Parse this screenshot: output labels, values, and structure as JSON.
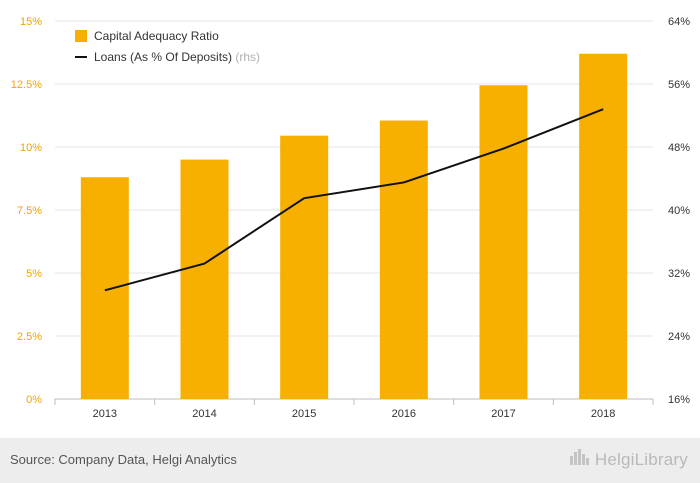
{
  "chart_data": {
    "type": "bar",
    "categories": [
      "2013",
      "2014",
      "2015",
      "2016",
      "2017",
      "2018"
    ],
    "series": [
      {
        "name": "Capital Adequacy Ratio",
        "type": "bar",
        "axis": "left",
        "color": "#f7b000",
        "values": [
          8.8,
          9.5,
          10.45,
          11.05,
          12.45,
          13.7
        ]
      },
      {
        "name": "Loans (As % Of Deposits)",
        "suffix": "(rhs)",
        "type": "line",
        "axis": "right",
        "color": "#111111",
        "values": [
          29.8,
          33.2,
          41.5,
          43.5,
          47.8,
          52.8
        ]
      }
    ],
    "left_axis": {
      "ylim": [
        0,
        15
      ],
      "ticks": [
        0,
        2.5,
        5,
        7.5,
        10,
        12.5,
        15
      ],
      "tick_labels": [
        "0%",
        "2.5%",
        "5%",
        "7.5%",
        "10%",
        "12.5%",
        "15%"
      ],
      "color": "#f0a500"
    },
    "right_axis": {
      "ylim": [
        16,
        64
      ],
      "ticks": [
        16,
        24,
        32,
        40,
        48,
        56,
        64
      ],
      "tick_labels": [
        "16%",
        "24%",
        "32%",
        "40%",
        "48%",
        "56%",
        "64%"
      ],
      "color": "#333333"
    },
    "legend_position": "top-left",
    "grid": true
  },
  "footer": {
    "source": "Source: Company Data, Helgi Analytics",
    "brand": "HelgiLibrary",
    "brand_icon": "city-skyline-icon"
  }
}
